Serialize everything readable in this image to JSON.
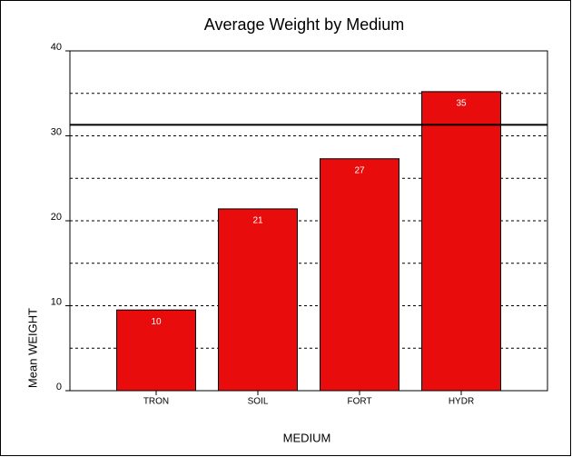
{
  "chart_data": {
    "type": "bar",
    "title": "Average Weight by Medium",
    "x_label": "MEDIUM",
    "y_label": "Mean WEIGHT",
    "categories": [
      "TRON",
      "SOIL",
      "FORT",
      "HYDR"
    ],
    "values": [
      9.5,
      21.4,
      27.3,
      35.2
    ],
    "value_labels": [
      "10",
      "21",
      "27",
      "35"
    ],
    "color": "#e80c0c",
    "ylim": [
      0,
      40
    ],
    "yticks": [
      0,
      10,
      20,
      30,
      40
    ],
    "grid": true,
    "ygrid": [
      5,
      10,
      15,
      20,
      25,
      30,
      35
    ],
    "reference_line": 31.3
  }
}
